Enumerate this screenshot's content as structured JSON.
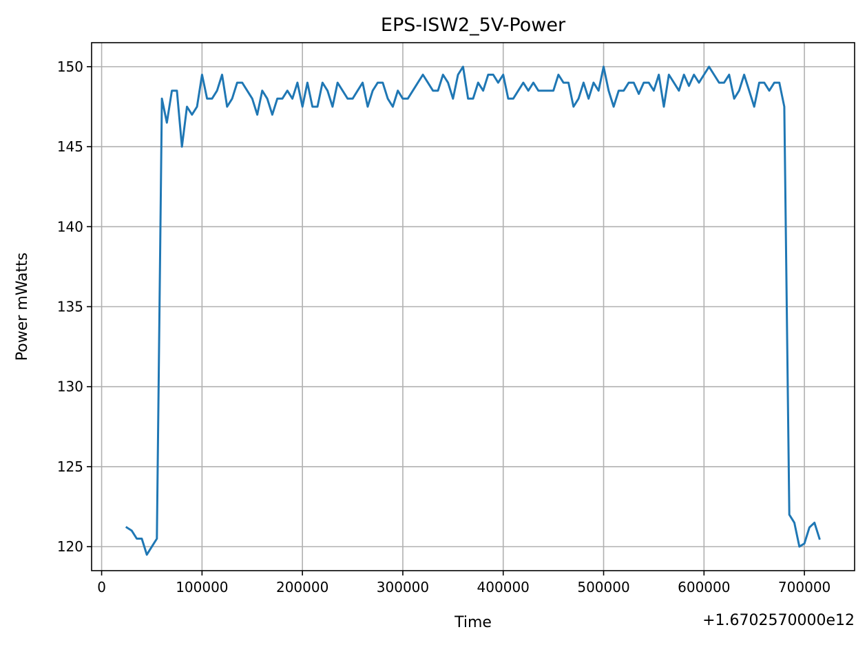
{
  "chart_data": {
    "type": "line",
    "title": "EPS-ISW2_5V-Power",
    "xlabel": "Time",
    "ylabel": "Power mWatts",
    "x_offset_label": "+1.6702570000e12",
    "xlim": [
      -10000,
      750000
    ],
    "ylim": [
      118.5,
      151.5
    ],
    "x_ticks": [
      0,
      100000,
      200000,
      300000,
      400000,
      500000,
      600000,
      700000
    ],
    "x_tick_labels": [
      "0",
      "100000",
      "200000",
      "300000",
      "400000",
      "500000",
      "600000",
      "700000"
    ],
    "y_ticks": [
      120,
      125,
      130,
      135,
      140,
      145,
      150
    ],
    "y_tick_labels": [
      "120",
      "125",
      "130",
      "135",
      "140",
      "145",
      "150"
    ],
    "grid": true,
    "color": "#1f77b4",
    "series": [
      {
        "x": [
          25000,
          30000,
          35000,
          40000,
          45000,
          50000,
          55000,
          60000,
          65000,
          70000,
          75000,
          80000,
          85000,
          90000,
          95000,
          100000,
          105000,
          110000,
          115000,
          120000,
          125000,
          130000,
          135000,
          140000,
          145000,
          150000,
          155000,
          160000,
          165000,
          170000,
          175000,
          180000,
          185000,
          190000,
          195000,
          200000,
          205000,
          210000,
          215000,
          220000,
          225000,
          230000,
          235000,
          240000,
          245000,
          250000,
          255000,
          260000,
          265000,
          270000,
          275000,
          280000,
          285000,
          290000,
          295000,
          300000,
          305000,
          310000,
          315000,
          320000,
          325000,
          330000,
          335000,
          340000,
          345000,
          350000,
          355000,
          360000,
          365000,
          370000,
          375000,
          380000,
          385000,
          390000,
          395000,
          400000,
          405000,
          410000,
          415000,
          420000,
          425000,
          430000,
          435000,
          440000,
          445000,
          450000,
          455000,
          460000,
          465000,
          470000,
          475000,
          480000,
          485000,
          490000,
          495000,
          500000,
          505000,
          510000,
          515000,
          520000,
          525000,
          530000,
          535000,
          540000,
          545000,
          550000,
          555000,
          560000,
          565000,
          570000,
          575000,
          580000,
          585000,
          590000,
          595000,
          600000,
          605000,
          610000,
          615000,
          620000,
          625000,
          630000,
          635000,
          640000,
          645000,
          650000,
          655000,
          660000,
          665000,
          670000,
          675000,
          680000,
          685000,
          690000,
          695000,
          700000,
          705000,
          710000,
          715000
        ],
        "values": [
          121.2,
          121.0,
          120.5,
          120.5,
          119.5,
          120.0,
          120.5,
          148.0,
          146.5,
          148.5,
          148.5,
          145.0,
          147.5,
          147.0,
          147.5,
          149.5,
          148.0,
          148.0,
          148.5,
          149.5,
          147.5,
          148.0,
          149.0,
          149.0,
          148.5,
          148.0,
          147.0,
          148.5,
          148.0,
          147.0,
          148.0,
          148.0,
          148.5,
          148.0,
          149.0,
          147.5,
          149.0,
          147.5,
          147.5,
          149.0,
          148.5,
          147.5,
          149.0,
          148.5,
          148.0,
          148.0,
          148.5,
          149.0,
          147.5,
          148.5,
          149.0,
          149.0,
          148.0,
          147.5,
          148.5,
          148.0,
          148.0,
          148.5,
          149.0,
          149.5,
          149.0,
          148.5,
          148.5,
          149.5,
          149.0,
          148.0,
          149.5,
          150.0,
          148.0,
          148.0,
          149.0,
          148.5,
          149.5,
          149.5,
          149.0,
          149.5,
          148.0,
          148.0,
          148.5,
          149.0,
          148.5,
          149.0,
          148.5,
          148.5,
          148.5,
          148.5,
          149.5,
          149.0,
          149.0,
          147.5,
          148.0,
          149.0,
          148.0,
          149.0,
          148.5,
          150.0,
          148.5,
          147.5,
          148.5,
          148.5,
          149.0,
          149.0,
          148.3,
          149.0,
          149.0,
          148.5,
          149.5,
          147.5,
          149.5,
          149.0,
          148.5,
          149.5,
          148.8,
          149.5,
          149.0,
          149.5,
          150.0,
          149.5,
          149.0,
          149.0,
          149.5,
          148.0,
          148.5,
          149.5,
          148.5,
          147.5,
          149.0,
          149.0,
          148.5,
          149.0,
          149.0,
          147.5,
          122.0,
          121.5,
          120.0,
          120.2,
          121.2,
          121.5,
          120.5
        ]
      }
    ]
  }
}
